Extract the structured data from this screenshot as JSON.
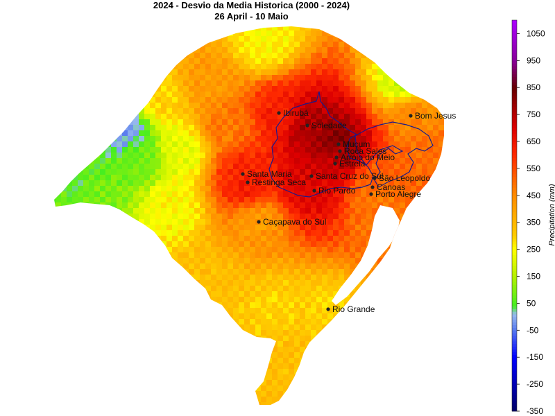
{
  "header": {
    "title": "2024 - Desvio da Media Historica (2000 - 2024)",
    "subtitle": "26 April - 10 Maio"
  },
  "colorbar": {
    "label": "Precipitation (mm)",
    "range": [
      -350,
      1100
    ],
    "ticks": [
      1050,
      950,
      850,
      750,
      650,
      550,
      450,
      350,
      250,
      150,
      50,
      -50,
      -150,
      -250,
      -350
    ],
    "stops": [
      {
        "v": -350,
        "c": "#000066"
      },
      {
        "v": -250,
        "c": "#0000b4"
      },
      {
        "v": -150,
        "c": "#0000ff"
      },
      {
        "v": -50,
        "c": "#5577ee"
      },
      {
        "v": 10,
        "c": "#99bbee"
      },
      {
        "v": 40,
        "c": "#44ee22"
      },
      {
        "v": 150,
        "c": "#b4f000"
      },
      {
        "v": 250,
        "c": "#ffff00"
      },
      {
        "v": 300,
        "c": "#ffcc00"
      },
      {
        "v": 450,
        "c": "#ff8c00"
      },
      {
        "v": 600,
        "c": "#ff2a00"
      },
      {
        "v": 700,
        "c": "#dd0000"
      },
      {
        "v": 850,
        "c": "#660000"
      },
      {
        "v": 950,
        "c": "#880099"
      },
      {
        "v": 1100,
        "c": "#aa00ff"
      }
    ]
  },
  "cities": [
    {
      "name": "Ibirubá",
      "value": 620
    },
    {
      "name": "Soledade",
      "value": 760
    },
    {
      "name": "Bom Jesus",
      "value": 450
    },
    {
      "name": "Muçum",
      "value": 820
    },
    {
      "name": "Roca Sales",
      "value": 780
    },
    {
      "name": "Arroio do Meio",
      "value": 760
    },
    {
      "name": "Estrela",
      "value": 720
    },
    {
      "name": "Santa Maria",
      "value": 600
    },
    {
      "name": "Restinga Seca",
      "value": 640
    },
    {
      "name": "Santa Cruz do Sul",
      "value": 700
    },
    {
      "name": "São Leopoldo",
      "value": 520
    },
    {
      "name": "Rio Pardo",
      "value": 680
    },
    {
      "name": "Canoas",
      "value": 500
    },
    {
      "name": "Porto Alegre",
      "value": 470
    },
    {
      "name": "Caçapava do Sul",
      "value": 420
    },
    {
      "name": "Rio Grande",
      "value": 300
    }
  ]
}
